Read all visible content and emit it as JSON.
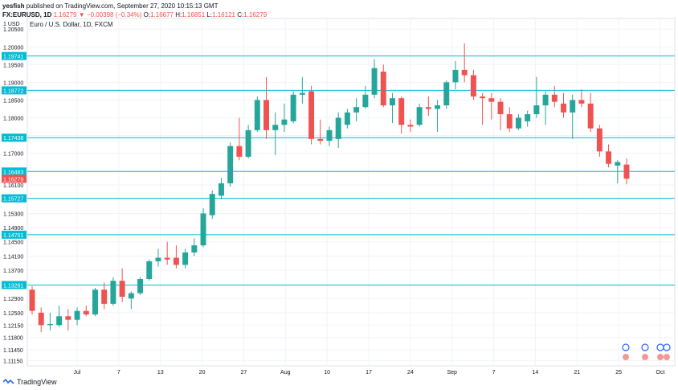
{
  "header": {
    "line1_user": "yesfish",
    "line1_rest": " published on TradingView.com, September 27, 2020 10:15:13 GMT",
    "symbol": "FX:EURUSD, 1D",
    "last": "1.16279",
    "change": "−0.00398 (−0.34%)",
    "open_label": "O:",
    "open": "1.16677",
    "high_label": "H:",
    "high": "1.16851",
    "low_label": "L:",
    "low": "1.16121",
    "close_label": "C:",
    "close": "1.16279"
  },
  "footer": {
    "brand": "TradingView"
  },
  "colors": {
    "up": "#26a69a",
    "down": "#ef5350",
    "line": "#00bcd4",
    "grid": "#f0f3fa",
    "axis_text": "#131722"
  },
  "chart_data": {
    "type": "candlestick",
    "title": "Euro / U.S. Dollar, 1D, FXCM",
    "currency_label": "1 USD",
    "ylim": [
      1.11,
      1.208
    ],
    "y_ticks": [
      "1.20500",
      "1.20000",
      "1.19500",
      "1.19000",
      "1.18500",
      "1.18000",
      "1.17500",
      "1.17000",
      "1.16500",
      "1.16100",
      "1.15300",
      "1.14900",
      "1.14500",
      "1.14100",
      "1.13700",
      "1.12900",
      "1.12500",
      "1.12150",
      "1.11800",
      "1.11450",
      "1.11150"
    ],
    "x_ticks": [
      "Jul",
      "7",
      "13",
      "20",
      "27",
      "Aug",
      "10",
      "17",
      "24",
      "Sep",
      "7",
      "14",
      "21",
      "25",
      "Oct"
    ],
    "horizontal_levels": [
      "1.19741",
      "1.18772",
      "1.17438",
      "1.16483",
      "1.15727",
      "1.14701",
      "1.13281"
    ],
    "last_price": "1.16279",
    "candles": [
      {
        "o": 1.1315,
        "h": 1.1325,
        "l": 1.1245,
        "c": 1.1255
      },
      {
        "o": 1.125,
        "h": 1.1265,
        "l": 1.1195,
        "c": 1.1215
      },
      {
        "o": 1.1215,
        "h": 1.125,
        "l": 1.12,
        "c": 1.1218
      },
      {
        "o": 1.1215,
        "h": 1.127,
        "l": 1.121,
        "c": 1.124
      },
      {
        "o": 1.124,
        "h": 1.126,
        "l": 1.12,
        "c": 1.123
      },
      {
        "o": 1.123,
        "h": 1.1265,
        "l": 1.1215,
        "c": 1.1255
      },
      {
        "o": 1.1255,
        "h": 1.127,
        "l": 1.124,
        "c": 1.1245
      },
      {
        "o": 1.1245,
        "h": 1.132,
        "l": 1.124,
        "c": 1.1315
      },
      {
        "o": 1.1315,
        "h": 1.1335,
        "l": 1.126,
        "c": 1.1275
      },
      {
        "o": 1.1275,
        "h": 1.135,
        "l": 1.127,
        "c": 1.134
      },
      {
        "o": 1.134,
        "h": 1.1375,
        "l": 1.128,
        "c": 1.1295
      },
      {
        "o": 1.129,
        "h": 1.131,
        "l": 1.126,
        "c": 1.1305
      },
      {
        "o": 1.1305,
        "h": 1.135,
        "l": 1.13,
        "c": 1.1345
      },
      {
        "o": 1.1345,
        "h": 1.14,
        "l": 1.134,
        "c": 1.1395
      },
      {
        "o": 1.1395,
        "h": 1.143,
        "l": 1.138,
        "c": 1.1405
      },
      {
        "o": 1.1405,
        "h": 1.145,
        "l": 1.1385,
        "c": 1.14
      },
      {
        "o": 1.1405,
        "h": 1.144,
        "l": 1.1375,
        "c": 1.1385
      },
      {
        "o": 1.1385,
        "h": 1.143,
        "l": 1.1375,
        "c": 1.142
      },
      {
        "o": 1.142,
        "h": 1.146,
        "l": 1.141,
        "c": 1.144
      },
      {
        "o": 1.144,
        "h": 1.1545,
        "l": 1.1435,
        "c": 1.153
      },
      {
        "o": 1.1525,
        "h": 1.1595,
        "l": 1.1515,
        "c": 1.1585
      },
      {
        "o": 1.158,
        "h": 1.163,
        "l": 1.157,
        "c": 1.1615
      },
      {
        "o": 1.1615,
        "h": 1.173,
        "l": 1.1605,
        "c": 1.172
      },
      {
        "o": 1.172,
        "h": 1.18,
        "l": 1.168,
        "c": 1.169
      },
      {
        "o": 1.169,
        "h": 1.178,
        "l": 1.1685,
        "c": 1.1765
      },
      {
        "o": 1.1765,
        "h": 1.186,
        "l": 1.176,
        "c": 1.185
      },
      {
        "o": 1.185,
        "h": 1.1915,
        "l": 1.174,
        "c": 1.1765
      },
      {
        "o": 1.1765,
        "h": 1.1815,
        "l": 1.1695,
        "c": 1.178
      },
      {
        "o": 1.178,
        "h": 1.184,
        "l": 1.176,
        "c": 1.1795
      },
      {
        "o": 1.179,
        "h": 1.1875,
        "l": 1.1785,
        "c": 1.1865
      },
      {
        "o": 1.1865,
        "h": 1.1915,
        "l": 1.184,
        "c": 1.187
      },
      {
        "o": 1.1875,
        "h": 1.189,
        "l": 1.1725,
        "c": 1.174
      },
      {
        "o": 1.174,
        "h": 1.1795,
        "l": 1.1725,
        "c": 1.1735
      },
      {
        "o": 1.1735,
        "h": 1.1775,
        "l": 1.172,
        "c": 1.1765
      },
      {
        "o": 1.174,
        "h": 1.1815,
        "l": 1.1715,
        "c": 1.18
      },
      {
        "o": 1.178,
        "h": 1.1825,
        "l": 1.177,
        "c": 1.1815
      },
      {
        "o": 1.1815,
        "h": 1.1855,
        "l": 1.179,
        "c": 1.183
      },
      {
        "o": 1.183,
        "h": 1.189,
        "l": 1.1825,
        "c": 1.1865
      },
      {
        "o": 1.1865,
        "h": 1.1965,
        "l": 1.1855,
        "c": 1.194
      },
      {
        "o": 1.193,
        "h": 1.195,
        "l": 1.183,
        "c": 1.1835
      },
      {
        "o": 1.1835,
        "h": 1.187,
        "l": 1.1785,
        "c": 1.1855
      },
      {
        "o": 1.1855,
        "h": 1.186,
        "l": 1.1755,
        "c": 1.178
      },
      {
        "o": 1.178,
        "h": 1.1795,
        "l": 1.176,
        "c": 1.1775
      },
      {
        "o": 1.178,
        "h": 1.184,
        "l": 1.1775,
        "c": 1.183
      },
      {
        "o": 1.183,
        "h": 1.186,
        "l": 1.1805,
        "c": 1.1825
      },
      {
        "o": 1.1825,
        "h": 1.185,
        "l": 1.176,
        "c": 1.1835
      },
      {
        "o": 1.1835,
        "h": 1.1905,
        "l": 1.1825,
        "c": 1.19
      },
      {
        "o": 1.19,
        "h": 1.196,
        "l": 1.188,
        "c": 1.1935
      },
      {
        "o": 1.1935,
        "h": 1.201,
        "l": 1.19,
        "c": 1.192
      },
      {
        "o": 1.192,
        "h": 1.1935,
        "l": 1.185,
        "c": 1.186
      },
      {
        "o": 1.186,
        "h": 1.187,
        "l": 1.178,
        "c": 1.1855
      },
      {
        "o": 1.1855,
        "h": 1.187,
        "l": 1.1795,
        "c": 1.1845
      },
      {
        "o": 1.1845,
        "h": 1.1855,
        "l": 1.1765,
        "c": 1.181
      },
      {
        "o": 1.181,
        "h": 1.183,
        "l": 1.176,
        "c": 1.177
      },
      {
        "o": 1.177,
        "h": 1.181,
        "l": 1.1765,
        "c": 1.18
      },
      {
        "o": 1.179,
        "h": 1.182,
        "l": 1.1775,
        "c": 1.181
      },
      {
        "o": 1.181,
        "h": 1.1915,
        "l": 1.18,
        "c": 1.1835
      },
      {
        "o": 1.1835,
        "h": 1.1875,
        "l": 1.178,
        "c": 1.1865
      },
      {
        "o": 1.1865,
        "h": 1.189,
        "l": 1.183,
        "c": 1.1845
      },
      {
        "o": 1.184,
        "h": 1.187,
        "l": 1.18,
        "c": 1.1815
      },
      {
        "o": 1.1815,
        "h": 1.1865,
        "l": 1.174,
        "c": 1.185
      },
      {
        "o": 1.185,
        "h": 1.188,
        "l": 1.183,
        "c": 1.184
      },
      {
        "o": 1.184,
        "h": 1.187,
        "l": 1.176,
        "c": 1.177
      },
      {
        "o": 1.177,
        "h": 1.178,
        "l": 1.169,
        "c": 1.1705
      },
      {
        "o": 1.1705,
        "h": 1.1725,
        "l": 1.166,
        "c": 1.167
      },
      {
        "o": 1.1665,
        "h": 1.168,
        "l": 1.1615,
        "c": 1.1675
      },
      {
        "o": 1.1668,
        "h": 1.1685,
        "l": 1.1612,
        "c": 1.1628
      }
    ]
  }
}
